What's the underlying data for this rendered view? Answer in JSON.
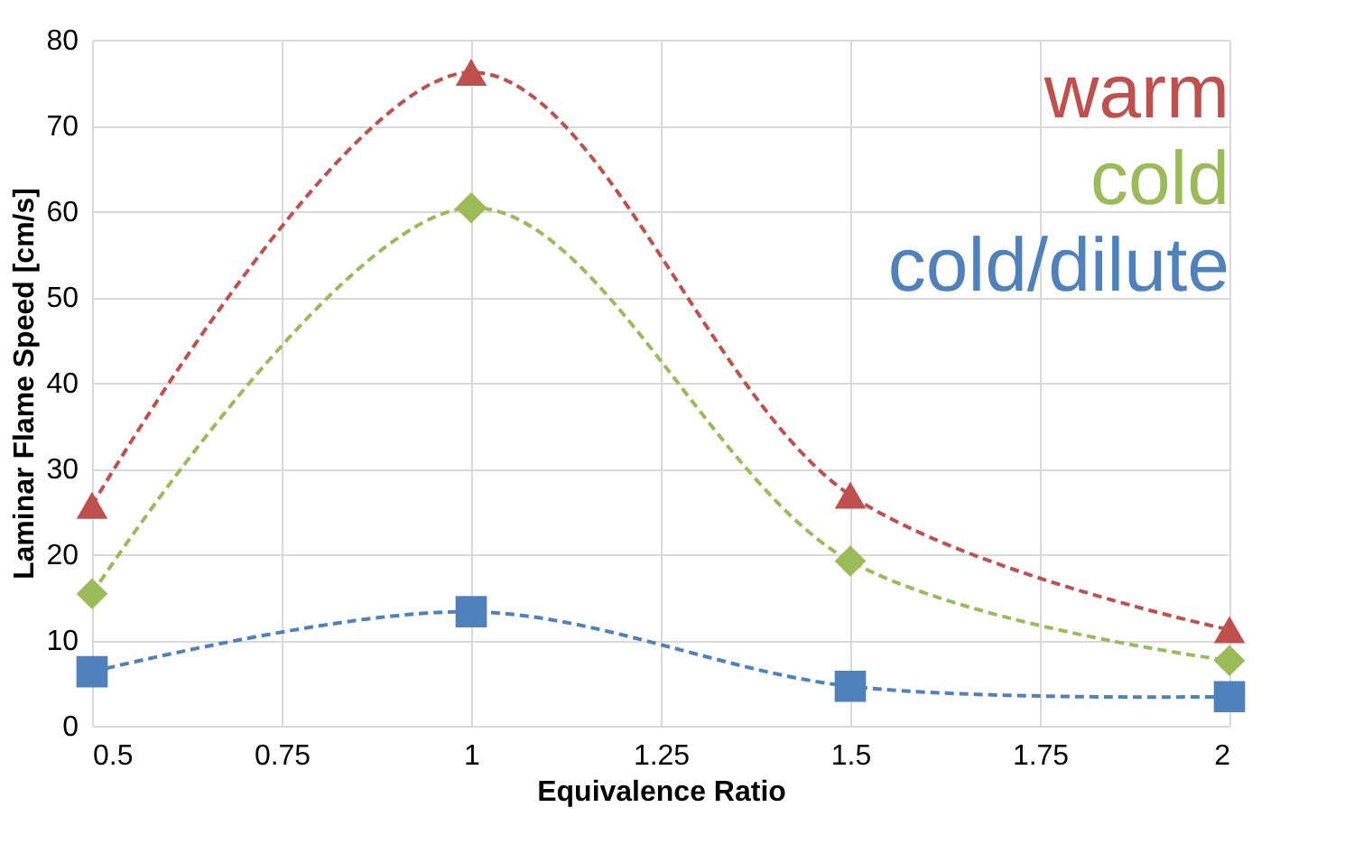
{
  "chart_data": {
    "type": "line",
    "xlabel": "Equivalence Ratio",
    "ylabel": "Laminar Flame Speed [cm/s]",
    "x": [
      0.5,
      1,
      1.5,
      2
    ],
    "series": [
      {
        "name": "warm",
        "color": "#c0504d",
        "marker": "triangle",
        "values": [
          25.7,
          76.2,
          26.9,
          11.2
        ]
      },
      {
        "name": "cold",
        "color": "#9bbb59",
        "marker": "diamond",
        "values": [
          15.4,
          60.4,
          19.2,
          7.6
        ]
      },
      {
        "name": "cold/dilute",
        "color": "#4f81bd",
        "marker": "square",
        "values": [
          6.3,
          13.3,
          4.6,
          3.4
        ]
      }
    ],
    "xlim": [
      0.5,
      2
    ],
    "xticks": [
      0.5,
      0.75,
      1,
      1.25,
      1.5,
      1.75,
      2
    ],
    "ylim": [
      0,
      80
    ],
    "yticks": [
      0,
      10,
      20,
      30,
      40,
      50,
      60,
      70,
      80
    ],
    "grid": true,
    "legend": "top right",
    "line_style": "dashed"
  }
}
